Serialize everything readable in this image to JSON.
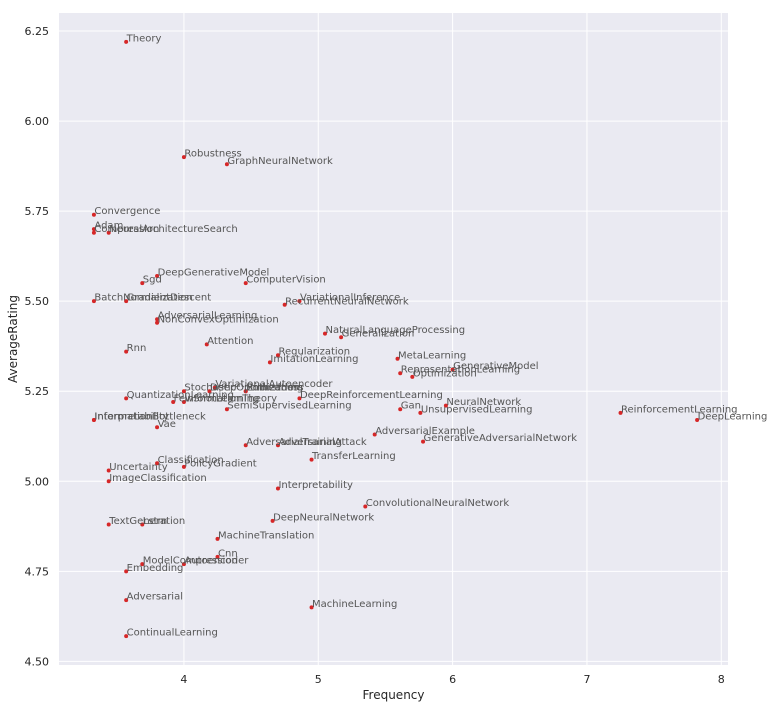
{
  "chart_data": {
    "type": "scatter",
    "title": "",
    "xlabel": "Frequency",
    "ylabel": "AverageRating",
    "xlim": [
      3.07,
      8.05
    ],
    "ylim": [
      4.49,
      6.3
    ],
    "xticks": [
      4,
      5,
      6,
      7,
      8
    ],
    "yticks": [
      4.5,
      4.75,
      5.0,
      5.25,
      5.5,
      5.75,
      6.0,
      6.25
    ],
    "ytick_labels": [
      "4.50",
      "4.75",
      "5.00",
      "5.25",
      "5.50",
      "5.75",
      "6.00",
      "6.25"
    ],
    "grid": true,
    "background": "#eaeaf2",
    "point_color": "#d62728",
    "label_color": "#555555",
    "points": [
      {
        "label": "Theory",
        "x": 3.57,
        "y": 6.22
      },
      {
        "label": "Robustness",
        "x": 4.0,
        "y": 5.9
      },
      {
        "label": "GraphNeuralNetwork",
        "x": 4.32,
        "y": 5.88
      },
      {
        "label": "Convergence",
        "x": 3.33,
        "y": 5.74
      },
      {
        "label": "Adam",
        "x": 3.33,
        "y": 5.7
      },
      {
        "label": "Compression",
        "x": 3.33,
        "y": 5.69
      },
      {
        "label": "NeuralArchitectureSearch",
        "x": 3.44,
        "y": 5.69
      },
      {
        "label": "DeepGenerativeModel",
        "x": 3.8,
        "y": 5.57
      },
      {
        "label": "Sgd",
        "x": 3.69,
        "y": 5.55
      },
      {
        "label": "ComputerVision",
        "x": 4.46,
        "y": 5.55
      },
      {
        "label": "BatchNormalization",
        "x": 3.33,
        "y": 5.5
      },
      {
        "label": "GradientDescent",
        "x": 3.57,
        "y": 5.5
      },
      {
        "label": "VariationalInference",
        "x": 4.86,
        "y": 5.5
      },
      {
        "label": "RecurrentNeuralNetwork",
        "x": 4.75,
        "y": 5.49
      },
      {
        "label": "AdversarialLearning",
        "x": 3.8,
        "y": 5.45
      },
      {
        "label": "NonConvexOptimization",
        "x": 3.8,
        "y": 5.44
      },
      {
        "label": "NaturalLanguageProcessing",
        "x": 5.05,
        "y": 5.41
      },
      {
        "label": "Generalization",
        "x": 5.17,
        "y": 5.4
      },
      {
        "label": "Attention",
        "x": 4.17,
        "y": 5.38
      },
      {
        "label": "Rnn",
        "x": 3.57,
        "y": 5.36
      },
      {
        "label": "Regularization",
        "x": 4.7,
        "y": 5.35
      },
      {
        "label": "MetaLearning",
        "x": 5.59,
        "y": 5.34
      },
      {
        "label": "ImitationLearning",
        "x": 4.64,
        "y": 5.33
      },
      {
        "label": "GenerativeModel",
        "x": 6.0,
        "y": 5.31
      },
      {
        "label": "RepresentationLearning",
        "x": 5.61,
        "y": 5.3
      },
      {
        "label": "Optimization",
        "x": 5.7,
        "y": 5.29
      },
      {
        "label": "VariationalAutoencoder",
        "x": 4.23,
        "y": 5.26
      },
      {
        "label": "StochasticOptimization",
        "x": 4.0,
        "y": 5.25
      },
      {
        "label": "Deep",
        "x": 4.19,
        "y": 5.25
      },
      {
        "label": "Embedding",
        "x": 4.46,
        "y": 5.25
      },
      {
        "label": "Robustness",
        "x": 4.46,
        "y": 5.25
      },
      {
        "label": "DeepReinforcementLearning",
        "x": 4.86,
        "y": 5.23
      },
      {
        "label": "QuantizationLearning",
        "x": 3.57,
        "y": 5.23
      },
      {
        "label": "FewShotLearning",
        "x": 3.92,
        "y": 5.22
      },
      {
        "label": "InformationTheory",
        "x": 4.0,
        "y": 5.22
      },
      {
        "label": "NeuralNetwork",
        "x": 5.95,
        "y": 5.21
      },
      {
        "label": "Gan",
        "x": 5.61,
        "y": 5.2
      },
      {
        "label": "SemiSupervisedLearning",
        "x": 4.32,
        "y": 5.2
      },
      {
        "label": "UnsupervisedLearning",
        "x": 5.76,
        "y": 5.19
      },
      {
        "label": "ReinforcementLearning",
        "x": 7.25,
        "y": 5.19
      },
      {
        "label": "InformationBottleneck",
        "x": 3.33,
        "y": 5.17
      },
      {
        "label": "Interpretability",
        "x": 3.33,
        "y": 5.17
      },
      {
        "label": "DeepLearning",
        "x": 7.82,
        "y": 5.17
      },
      {
        "label": "Vae",
        "x": 3.8,
        "y": 5.15
      },
      {
        "label": "AdversarialExample",
        "x": 5.42,
        "y": 5.13
      },
      {
        "label": "GenerativeAdversarialNetwork",
        "x": 5.78,
        "y": 5.11
      },
      {
        "label": "AdversarialAttack",
        "x": 4.7,
        "y": 5.1
      },
      {
        "label": "AdversarialTraining",
        "x": 4.46,
        "y": 5.1
      },
      {
        "label": "TransferLearning",
        "x": 4.95,
        "y": 5.06
      },
      {
        "label": "Classification",
        "x": 3.8,
        "y": 5.05
      },
      {
        "label": "PolicyGradient",
        "x": 4.0,
        "y": 5.04
      },
      {
        "label": "Uncertainty",
        "x": 3.44,
        "y": 5.03
      },
      {
        "label": "ImageClassification",
        "x": 3.44,
        "y": 5.0
      },
      {
        "label": "Interpretability",
        "x": 4.7,
        "y": 4.98
      },
      {
        "label": "ConvolutionalNeuralNetwork",
        "x": 5.35,
        "y": 4.93
      },
      {
        "label": "DeepNeuralNetwork",
        "x": 4.66,
        "y": 4.89
      },
      {
        "label": "TextGeneration",
        "x": 3.44,
        "y": 4.88
      },
      {
        "label": "Lstm",
        "x": 3.69,
        "y": 4.88
      },
      {
        "label": "MachineTranslation",
        "x": 4.25,
        "y": 4.84
      },
      {
        "label": "Cnn",
        "x": 4.25,
        "y": 4.79
      },
      {
        "label": "ModelCompression",
        "x": 3.69,
        "y": 4.77
      },
      {
        "label": "Autoencoder",
        "x": 4.0,
        "y": 4.77
      },
      {
        "label": "Embedding",
        "x": 3.57,
        "y": 4.75
      },
      {
        "label": "Adversarial",
        "x": 3.57,
        "y": 4.67
      },
      {
        "label": "MachineLearning",
        "x": 4.95,
        "y": 4.65
      },
      {
        "label": "ContinualLearning",
        "x": 3.57,
        "y": 4.57
      }
    ]
  }
}
